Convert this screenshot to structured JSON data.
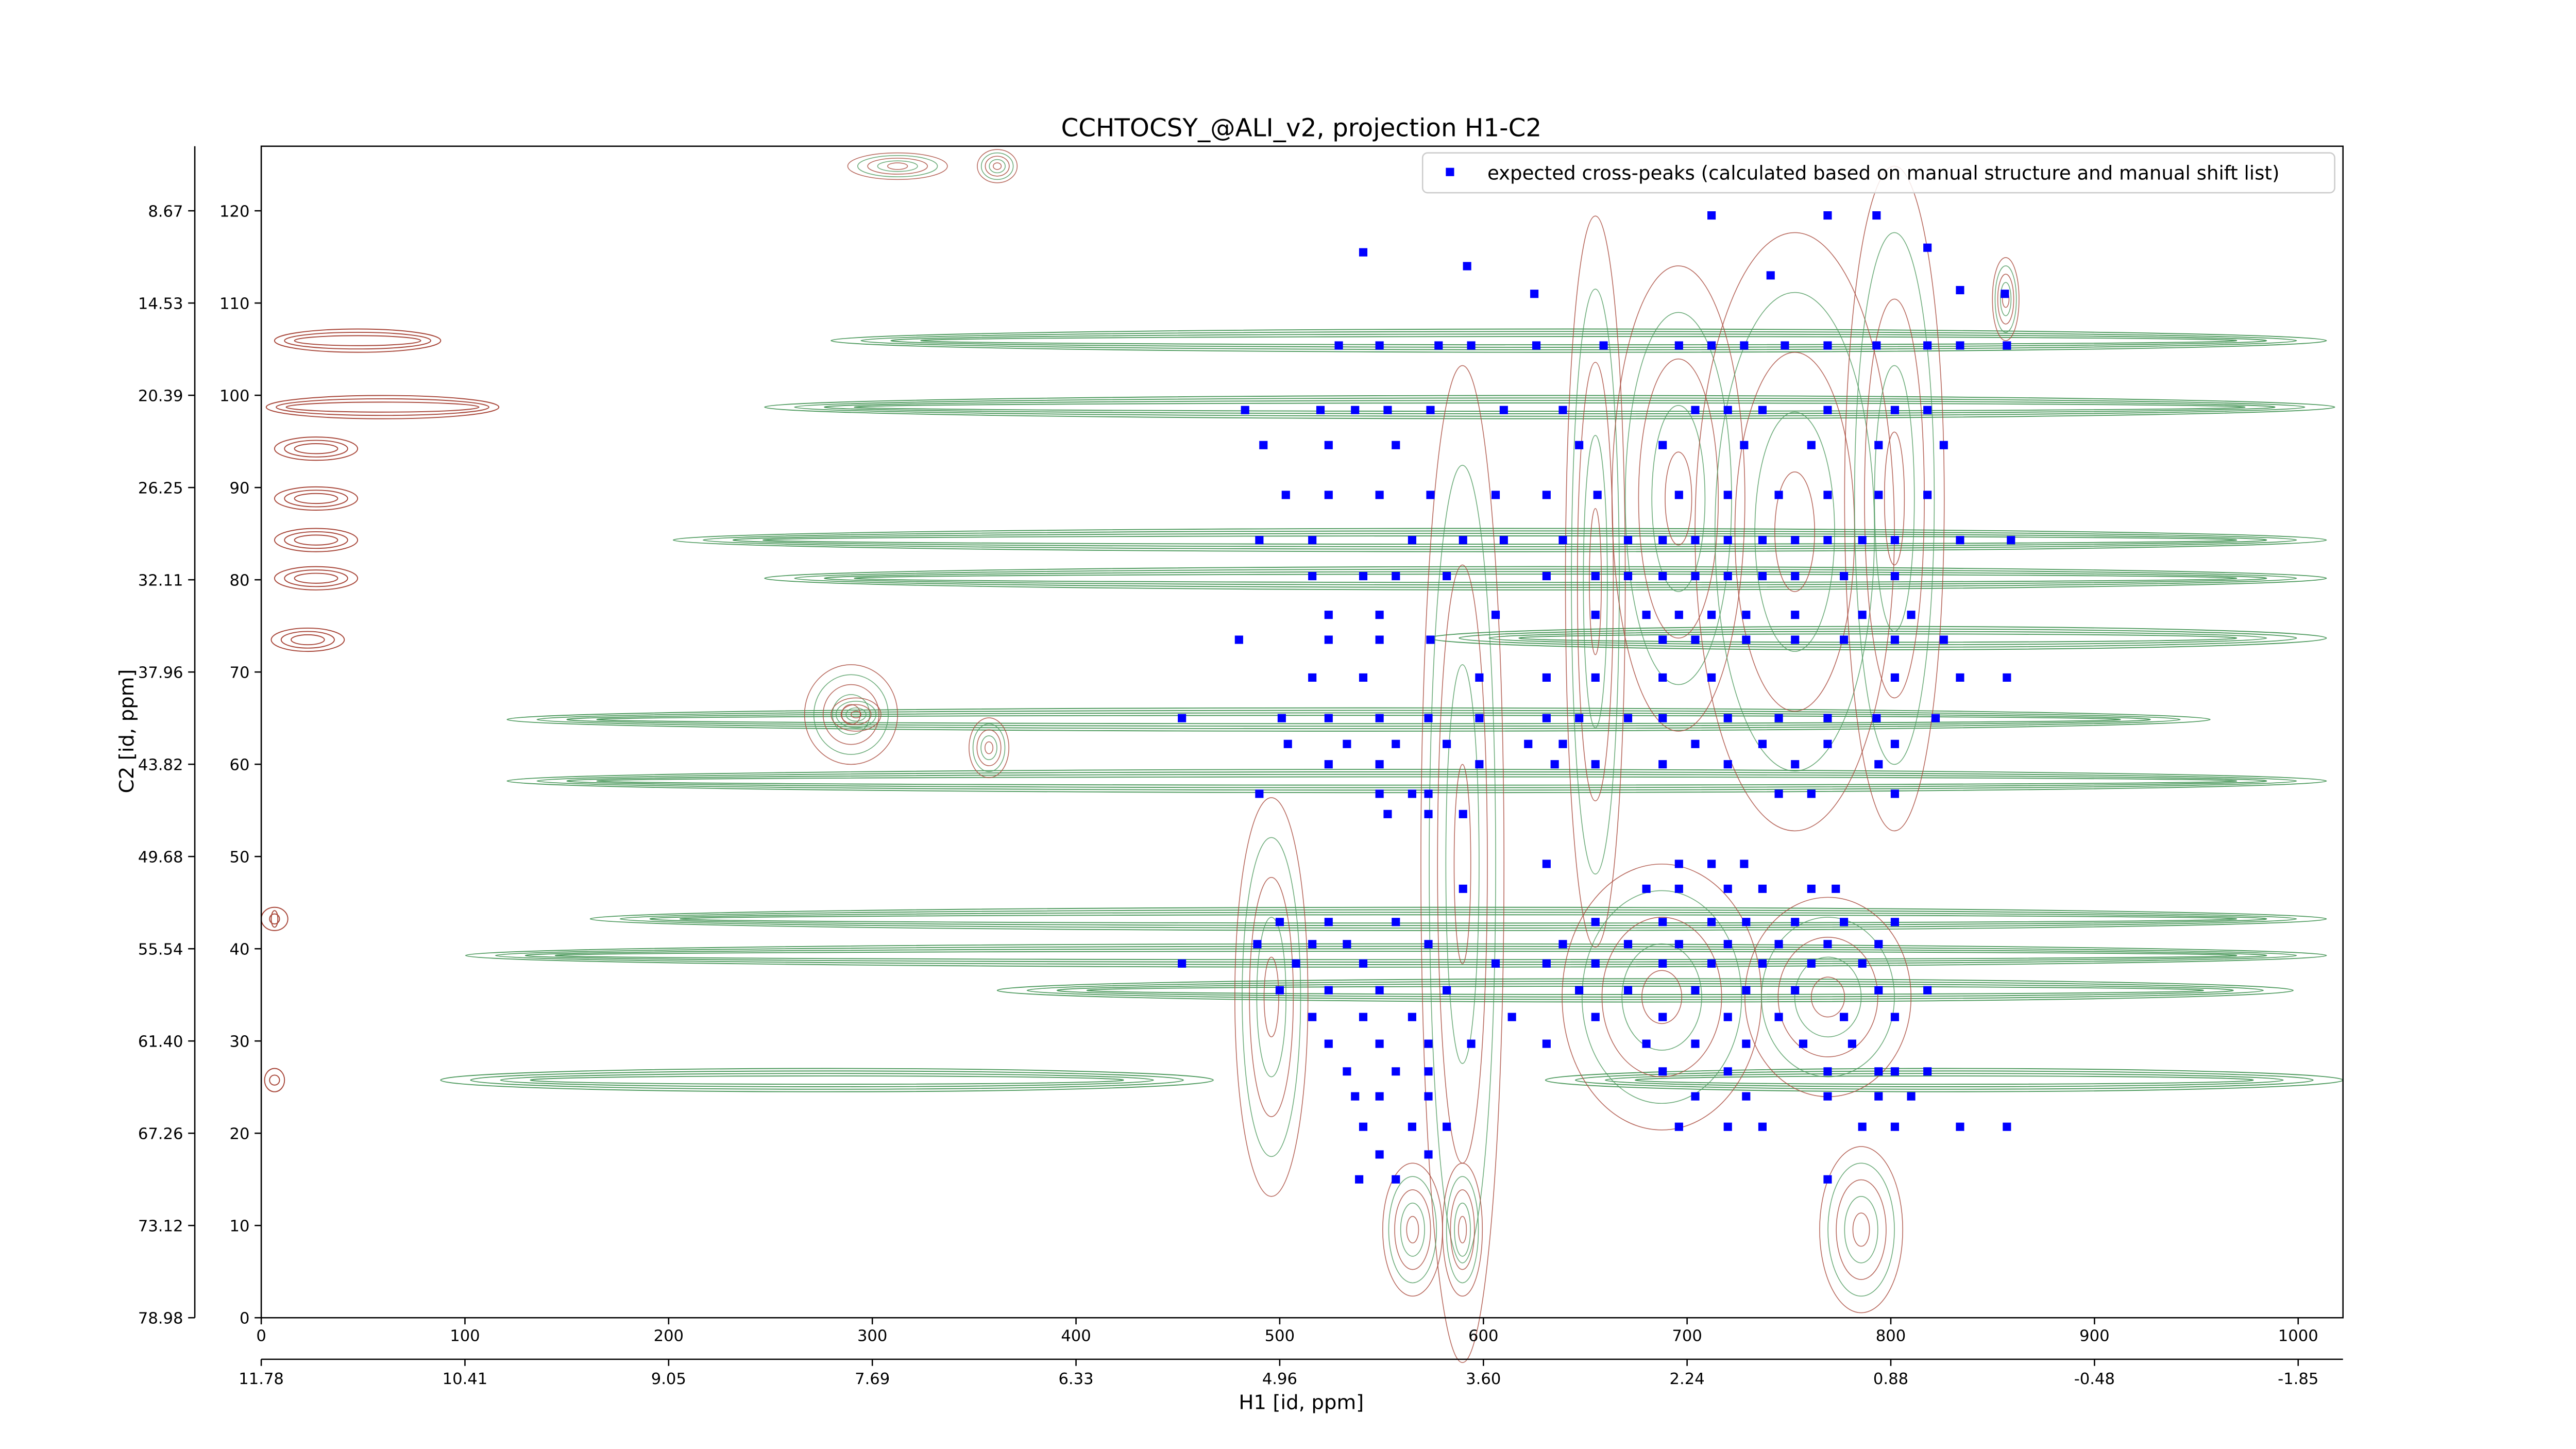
{
  "chart_data": {
    "type": "scatter",
    "title": "CCHTOCSY_@ALI_v2, projection H1-C2",
    "xlabel": "H1 [id, ppm]",
    "ylabel": "C2 [id, ppm]",
    "xlim": [
      0,
      1022
    ],
    "ylim": [
      0,
      127
    ],
    "xticks": [
      0,
      100,
      200,
      300,
      400,
      500,
      600,
      700,
      800,
      900,
      1000
    ],
    "yticks": [
      0,
      10,
      20,
      30,
      40,
      50,
      60,
      70,
      80,
      90,
      100,
      110,
      120
    ],
    "x2ticks": [
      {
        "value": 0,
        "label": "11.78"
      },
      {
        "value": 100,
        "label": "10.41"
      },
      {
        "value": 200,
        "label": "9.05"
      },
      {
        "value": 300,
        "label": "7.69"
      },
      {
        "value": 400,
        "label": "6.33"
      },
      {
        "value": 500,
        "label": "4.96"
      },
      {
        "value": 600,
        "label": "3.60"
      },
      {
        "value": 700,
        "label": "2.24"
      },
      {
        "value": 800,
        "label": "0.88"
      },
      {
        "value": 900,
        "label": "-0.48"
      },
      {
        "value": 1000,
        "label": "-1.85"
      }
    ],
    "y2ticks": [
      {
        "value": 120,
        "label": "8.67"
      },
      {
        "value": 110,
        "label": "14.53"
      },
      {
        "value": 100,
        "label": "20.39"
      },
      {
        "value": 90,
        "label": "26.25"
      },
      {
        "value": 80,
        "label": "32.11"
      },
      {
        "value": 70,
        "label": "37.96"
      },
      {
        "value": 60,
        "label": "43.82"
      },
      {
        "value": 50,
        "label": "49.68"
      },
      {
        "value": 40,
        "label": "55.54"
      },
      {
        "value": 30,
        "label": "61.40"
      },
      {
        "value": 20,
        "label": "67.26"
      },
      {
        "value": 10,
        "label": "73.12"
      },
      {
        "value": 0,
        "label": "78.98"
      }
    ],
    "legend": "upper right",
    "series": [
      {
        "name": "expected cross-peaks (calculated based on manual structure and manual shift list)",
        "color": "#0000ff",
        "x": [
          541,
          592,
          712,
          769,
          793,
          741,
          818,
          834,
          856,
          625,
          529,
          549,
          578,
          594,
          626,
          659,
          696,
          712,
          728,
          748,
          769,
          793,
          818,
          834,
          857,
          483,
          520,
          537,
          553,
          574,
          610,
          639,
          704,
          720,
          737,
          769,
          802,
          818,
          492,
          524,
          557,
          647,
          688,
          728,
          761,
          794,
          826,
          503,
          524,
          549,
          574,
          606,
          631,
          656,
          696,
          720,
          745,
          769,
          794,
          818,
          490,
          516,
          565,
          590,
          610,
          639,
          671,
          688,
          704,
          720,
          737,
          753,
          769,
          786,
          802,
          834,
          859,
          516,
          541,
          557,
          582,
          631,
          655,
          671,
          688,
          704,
          720,
          737,
          753,
          777,
          802,
          524,
          549,
          606,
          655,
          680,
          696,
          712,
          729,
          753,
          786,
          810,
          480,
          524,
          549,
          574,
          688,
          704,
          729,
          753,
          777,
          802,
          826,
          516,
          541,
          598,
          631,
          655,
          688,
          712,
          802,
          834,
          857,
          452,
          501,
          524,
          549,
          573,
          598,
          631,
          647,
          671,
          688,
          720,
          745,
          769,
          793,
          822,
          504,
          533,
          557,
          582,
          622,
          639,
          704,
          737,
          769,
          802,
          524,
          549,
          598,
          635,
          655,
          688,
          720,
          753,
          794,
          490,
          549,
          565,
          573,
          745,
          761,
          802,
          553,
          573,
          590,
          631,
          696,
          712,
          728,
          590,
          680,
          696,
          720,
          737,
          761,
          773,
          500,
          524,
          557,
          655,
          688,
          712,
          729,
          753,
          777,
          802,
          489,
          516,
          533,
          573,
          639,
          671,
          696,
          720,
          745,
          769,
          794,
          452,
          508,
          541,
          606,
          631,
          655,
          688,
          712,
          737,
          761,
          786,
          500,
          524,
          549,
          582,
          647,
          671,
          704,
          729,
          753,
          794,
          818,
          516,
          541,
          565,
          614,
          655,
          688,
          720,
          745,
          777,
          802,
          524,
          549,
          573,
          594,
          631,
          680,
          704,
          729,
          757,
          781,
          533,
          557,
          573,
          688,
          720,
          769,
          794,
          802,
          818,
          537,
          549,
          573,
          704,
          729,
          769,
          794,
          810,
          541,
          565,
          582,
          696,
          720,
          737,
          786,
          802,
          834,
          857,
          549,
          573,
          539,
          557,
          769
        ],
        "values": [
          115.5,
          114,
          119.5,
          119.5,
          119.5,
          113,
          116,
          111.4,
          111,
          111,
          105.4,
          105.4,
          105.4,
          105.4,
          105.4,
          105.4,
          105.4,
          105.4,
          105.4,
          105.4,
          105.4,
          105.4,
          105.4,
          105.4,
          105.4,
          98.4,
          98.4,
          98.4,
          98.4,
          98.4,
          98.4,
          98.4,
          98.4,
          98.4,
          98.4,
          98.4,
          98.4,
          98.4,
          94.6,
          94.6,
          94.6,
          94.6,
          94.6,
          94.6,
          94.6,
          94.6,
          94.6,
          89.2,
          89.2,
          89.2,
          89.2,
          89.2,
          89.2,
          89.2,
          89.2,
          89.2,
          89.2,
          89.2,
          89.2,
          89.2,
          84.3,
          84.3,
          84.3,
          84.3,
          84.3,
          84.3,
          84.3,
          84.3,
          84.3,
          84.3,
          84.3,
          84.3,
          84.3,
          84.3,
          84.3,
          84.3,
          84.3,
          80.4,
          80.4,
          80.4,
          80.4,
          80.4,
          80.4,
          80.4,
          80.4,
          80.4,
          80.4,
          80.4,
          80.4,
          80.4,
          80.4,
          76.2,
          76.2,
          76.2,
          76.2,
          76.2,
          76.2,
          76.2,
          76.2,
          76.2,
          76.2,
          76.2,
          73.5,
          73.5,
          73.5,
          73.5,
          73.5,
          73.5,
          73.5,
          73.5,
          73.5,
          73.5,
          73.5,
          69.4,
          69.4,
          69.4,
          69.4,
          69.4,
          69.4,
          69.4,
          69.4,
          69.4,
          69.4,
          65,
          65,
          65,
          65,
          65,
          65,
          65,
          65,
          65,
          65,
          65,
          65,
          65,
          65,
          65,
          62.2,
          62.2,
          62.2,
          62.2,
          62.2,
          62.2,
          62.2,
          62.2,
          62.2,
          62.2,
          60,
          60,
          60,
          60,
          60,
          60,
          60,
          60,
          60,
          56.8,
          56.8,
          56.8,
          56.8,
          56.8,
          56.8,
          56.8,
          54.6,
          54.6,
          54.6,
          49.2,
          49.2,
          49.2,
          49.2,
          46.5,
          46.5,
          46.5,
          46.5,
          46.5,
          46.5,
          46.5,
          42.9,
          42.9,
          42.9,
          42.9,
          42.9,
          42.9,
          42.9,
          42.9,
          42.9,
          42.9,
          40.5,
          40.5,
          40.5,
          40.5,
          40.5,
          40.5,
          40.5,
          40.5,
          40.5,
          40.5,
          40.5,
          38.4,
          38.4,
          38.4,
          38.4,
          38.4,
          38.4,
          38.4,
          38.4,
          38.4,
          38.4,
          38.4,
          35.5,
          35.5,
          35.5,
          35.5,
          35.5,
          35.5,
          35.5,
          35.5,
          35.5,
          35.5,
          35.5,
          32.6,
          32.6,
          32.6,
          32.6,
          32.6,
          32.6,
          32.6,
          32.6,
          32.6,
          32.6,
          29.7,
          29.7,
          29.7,
          29.7,
          29.7,
          29.7,
          29.7,
          29.7,
          29.7,
          29.7,
          26.7,
          26.7,
          26.7,
          26.7,
          26.7,
          26.7,
          26.7,
          26.7,
          26.7,
          24,
          24,
          24,
          24,
          24,
          24,
          24,
          24,
          20.7,
          20.7,
          20.7,
          20.7,
          20.7,
          20.7,
          20.7,
          20.7,
          20.7,
          20.7,
          17.7,
          17.7,
          15,
          15,
          15
        ]
      }
    ]
  }
}
